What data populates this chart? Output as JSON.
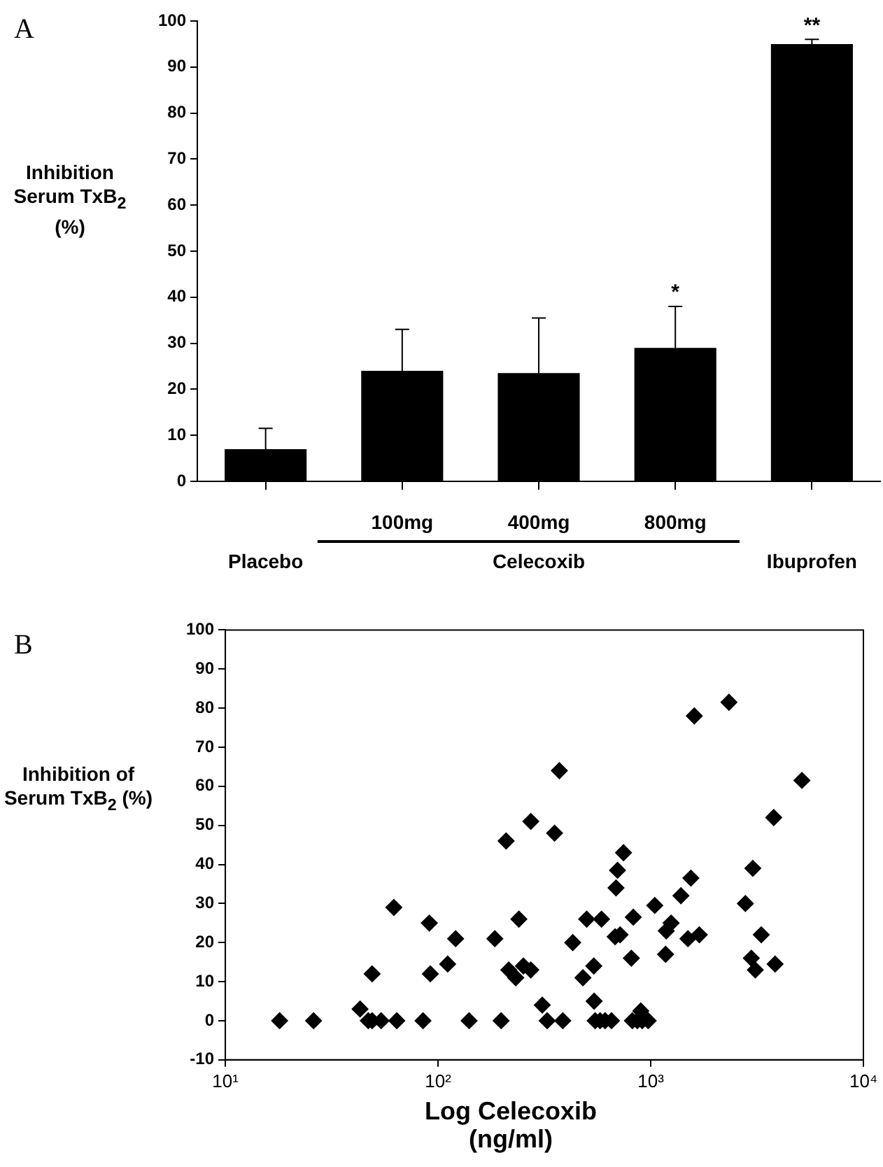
{
  "chart_data": [
    {
      "type": "bar",
      "title": "A",
      "ylabel": "Inhibition Serum TxB$_{2}$ (%)",
      "categories": [
        "Placebo",
        "100mg",
        "400mg",
        "800mg",
        "Ibuprofen"
      ],
      "values": [
        7,
        24,
        23.5,
        29,
        95
      ],
      "color": "#000000",
      "errors": [
        [
          7,
          11.5
        ],
        [
          24,
          33
        ],
        [
          23.5,
          35.5
        ],
        [
          29,
          38
        ],
        [
          95,
          96
        ]
      ],
      "ylim": [
        0,
        100
      ],
      "yticks": [
        0,
        10,
        20,
        30,
        40,
        50,
        60,
        70,
        80,
        90,
        100
      ],
      "grid": false,
      "annotations": [
        {
          "text": "*",
          "x": "800mg",
          "y": 38
        },
        {
          "text": "**",
          "x": "Ibuprofen",
          "y": 96
        },
        "Celecoxib"
      ]
    },
    {
      "type": "scatter",
      "title": "B",
      "xlabel": "Log Celecoxib (ng/ml)",
      "ylabel": "Inhibition of Serum TxB$_{2}$ (%)",
      "log": "x",
      "marker": "diamond",
      "color": "#000000",
      "grid": false,
      "x": [
        18,
        26,
        43,
        47,
        49,
        49,
        54,
        62,
        64,
        85,
        91,
        92,
        111,
        121,
        140,
        185,
        198,
        209,
        215,
        232,
        240,
        252,
        273,
        273,
        309,
        326,
        353,
        372,
        386,
        430,
        480,
        500,
        540,
        542,
        548,
        578,
        610,
        654,
        820,
        865,
        898,
        912,
        973,
        587,
        687,
        698,
        745,
        680,
        718,
        811,
        828,
        1045,
        1175,
        1183,
        1247,
        1387,
        1496,
        1545,
        1603,
        1692,
        2333,
        2786,
        3020,
        2973,
        3102,
        3310,
        3788,
        3845,
        5140
      ],
      "values": [
        0,
        0,
        3,
        0,
        0,
        12,
        0,
        29,
        0,
        0,
        25,
        12,
        14.5,
        21,
        0,
        21,
        0,
        46,
        13,
        11,
        26,
        14,
        51,
        13,
        4,
        0,
        48,
        64,
        0,
        20,
        11,
        26,
        14,
        5,
        0,
        0,
        0,
        0,
        0,
        0,
        2.5,
        0,
        0,
        26,
        34,
        38.5,
        43,
        21.5,
        22,
        16,
        26.5,
        29.5,
        17,
        23,
        25,
        32,
        21,
        36.5,
        78,
        22,
        81.5,
        30,
        39,
        16,
        13,
        22,
        52,
        14.5,
        61.5
      ],
      "xlim": [
        10,
        10000
      ],
      "xticks": [
        {
          "value": 10,
          "label": "10¹"
        },
        {
          "value": 100,
          "label": "10²"
        },
        {
          "value": 1000,
          "label": "10³"
        },
        {
          "value": 10000,
          "label": "10⁴"
        }
      ],
      "ylim": [
        -10,
        100
      ],
      "yticks": [
        -10,
        0,
        10,
        20,
        30,
        40,
        50,
        60,
        70,
        80,
        90,
        100
      ]
    }
  ]
}
